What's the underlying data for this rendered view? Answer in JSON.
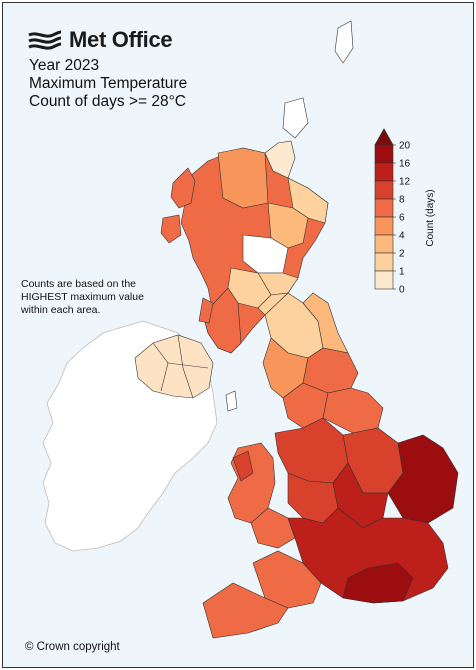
{
  "brand": {
    "name": "Met Office"
  },
  "title_lines": [
    "Year 2023",
    "Maximum Temperature",
    "Count of days >= 28°C"
  ],
  "note": "Counts are based on the HIGHEST maximum value within each area.",
  "copyright": "© Crown copyright",
  "legend": {
    "title": "Count (days)",
    "ticks": [
      "0",
      "1",
      "2",
      "4",
      "6",
      "8",
      "12",
      "16",
      "20"
    ],
    "colors": [
      "#ffffff",
      "#fde9d0",
      "#fdd29f",
      "#fdb87c",
      "#f8955a",
      "#ef6b45",
      "#d8412b",
      "#bd1f1a",
      "#9b0d0f"
    ],
    "extend_max_color": "#7a0a0a"
  },
  "colors": {
    "ireland": "#ffffff",
    "border": "#333333",
    "background": "#eef6fb"
  }
}
